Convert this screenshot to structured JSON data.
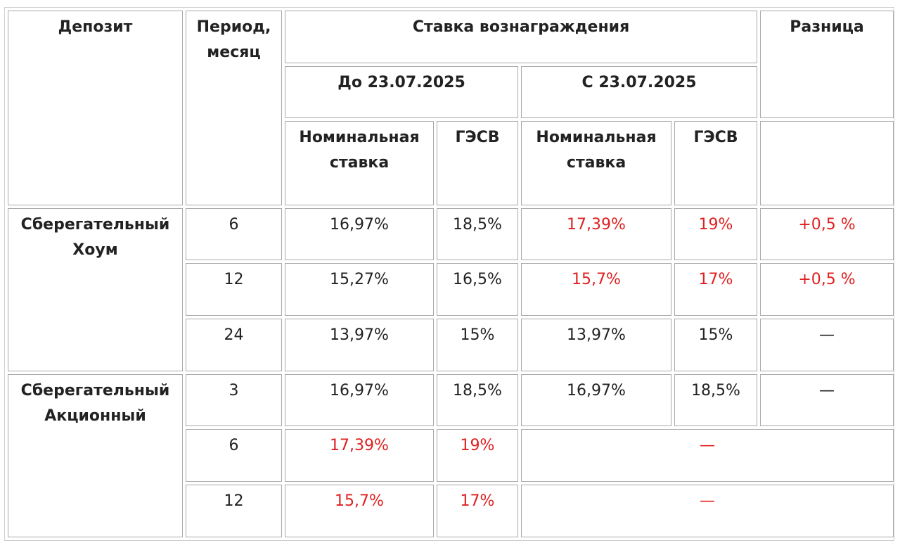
{
  "header": {
    "deposit": "Депозит",
    "period_line1": "Период,",
    "period_line2": "месяц",
    "rate": "Ставка вознаграждения",
    "difference": "Разница",
    "before": "До 23.07.2025",
    "after": "С 23.07.2025",
    "nominal_line1": "Номинальная",
    "nominal_line2": "ставка",
    "gesv": "ГЭСВ"
  },
  "groups": [
    {
      "name_line1": "Сберегательный",
      "name_line2": "Хоум",
      "rows": [
        {
          "period": "6",
          "nom_before": "16,97%",
          "gesv_before": "18,5%",
          "nom_after": "17,39%",
          "gesv_after": "19%",
          "diff": "+0,5 %"
        },
        {
          "period": "12",
          "nom_before": "15,27%",
          "gesv_before": "16,5%",
          "nom_after": "15,7%",
          "gesv_after": "17%",
          "diff": "+0,5 %"
        },
        {
          "period": "24",
          "nom_before": "13,97%",
          "gesv_before": "15%",
          "nom_after": "13,97%",
          "gesv_after": "15%",
          "diff": "—"
        }
      ]
    },
    {
      "name_line1": "Сберегательный",
      "name_line2": "Акционный",
      "rows": [
        {
          "period": "3",
          "nom_before": "16,97%",
          "gesv_before": "18,5%",
          "nom_after": "16,97%",
          "gesv_after": "18,5%",
          "diff": "—"
        },
        {
          "period": "6",
          "nom_before": "17,39%",
          "gesv_before": "19%",
          "merged_after": "—"
        },
        {
          "period": "12",
          "nom_before": "15,7%",
          "gesv_before": "17%",
          "merged_after": "—"
        }
      ]
    }
  ],
  "colors": {
    "highlight": "#e02020",
    "text": "#222222",
    "border": "#a9a9a9"
  }
}
